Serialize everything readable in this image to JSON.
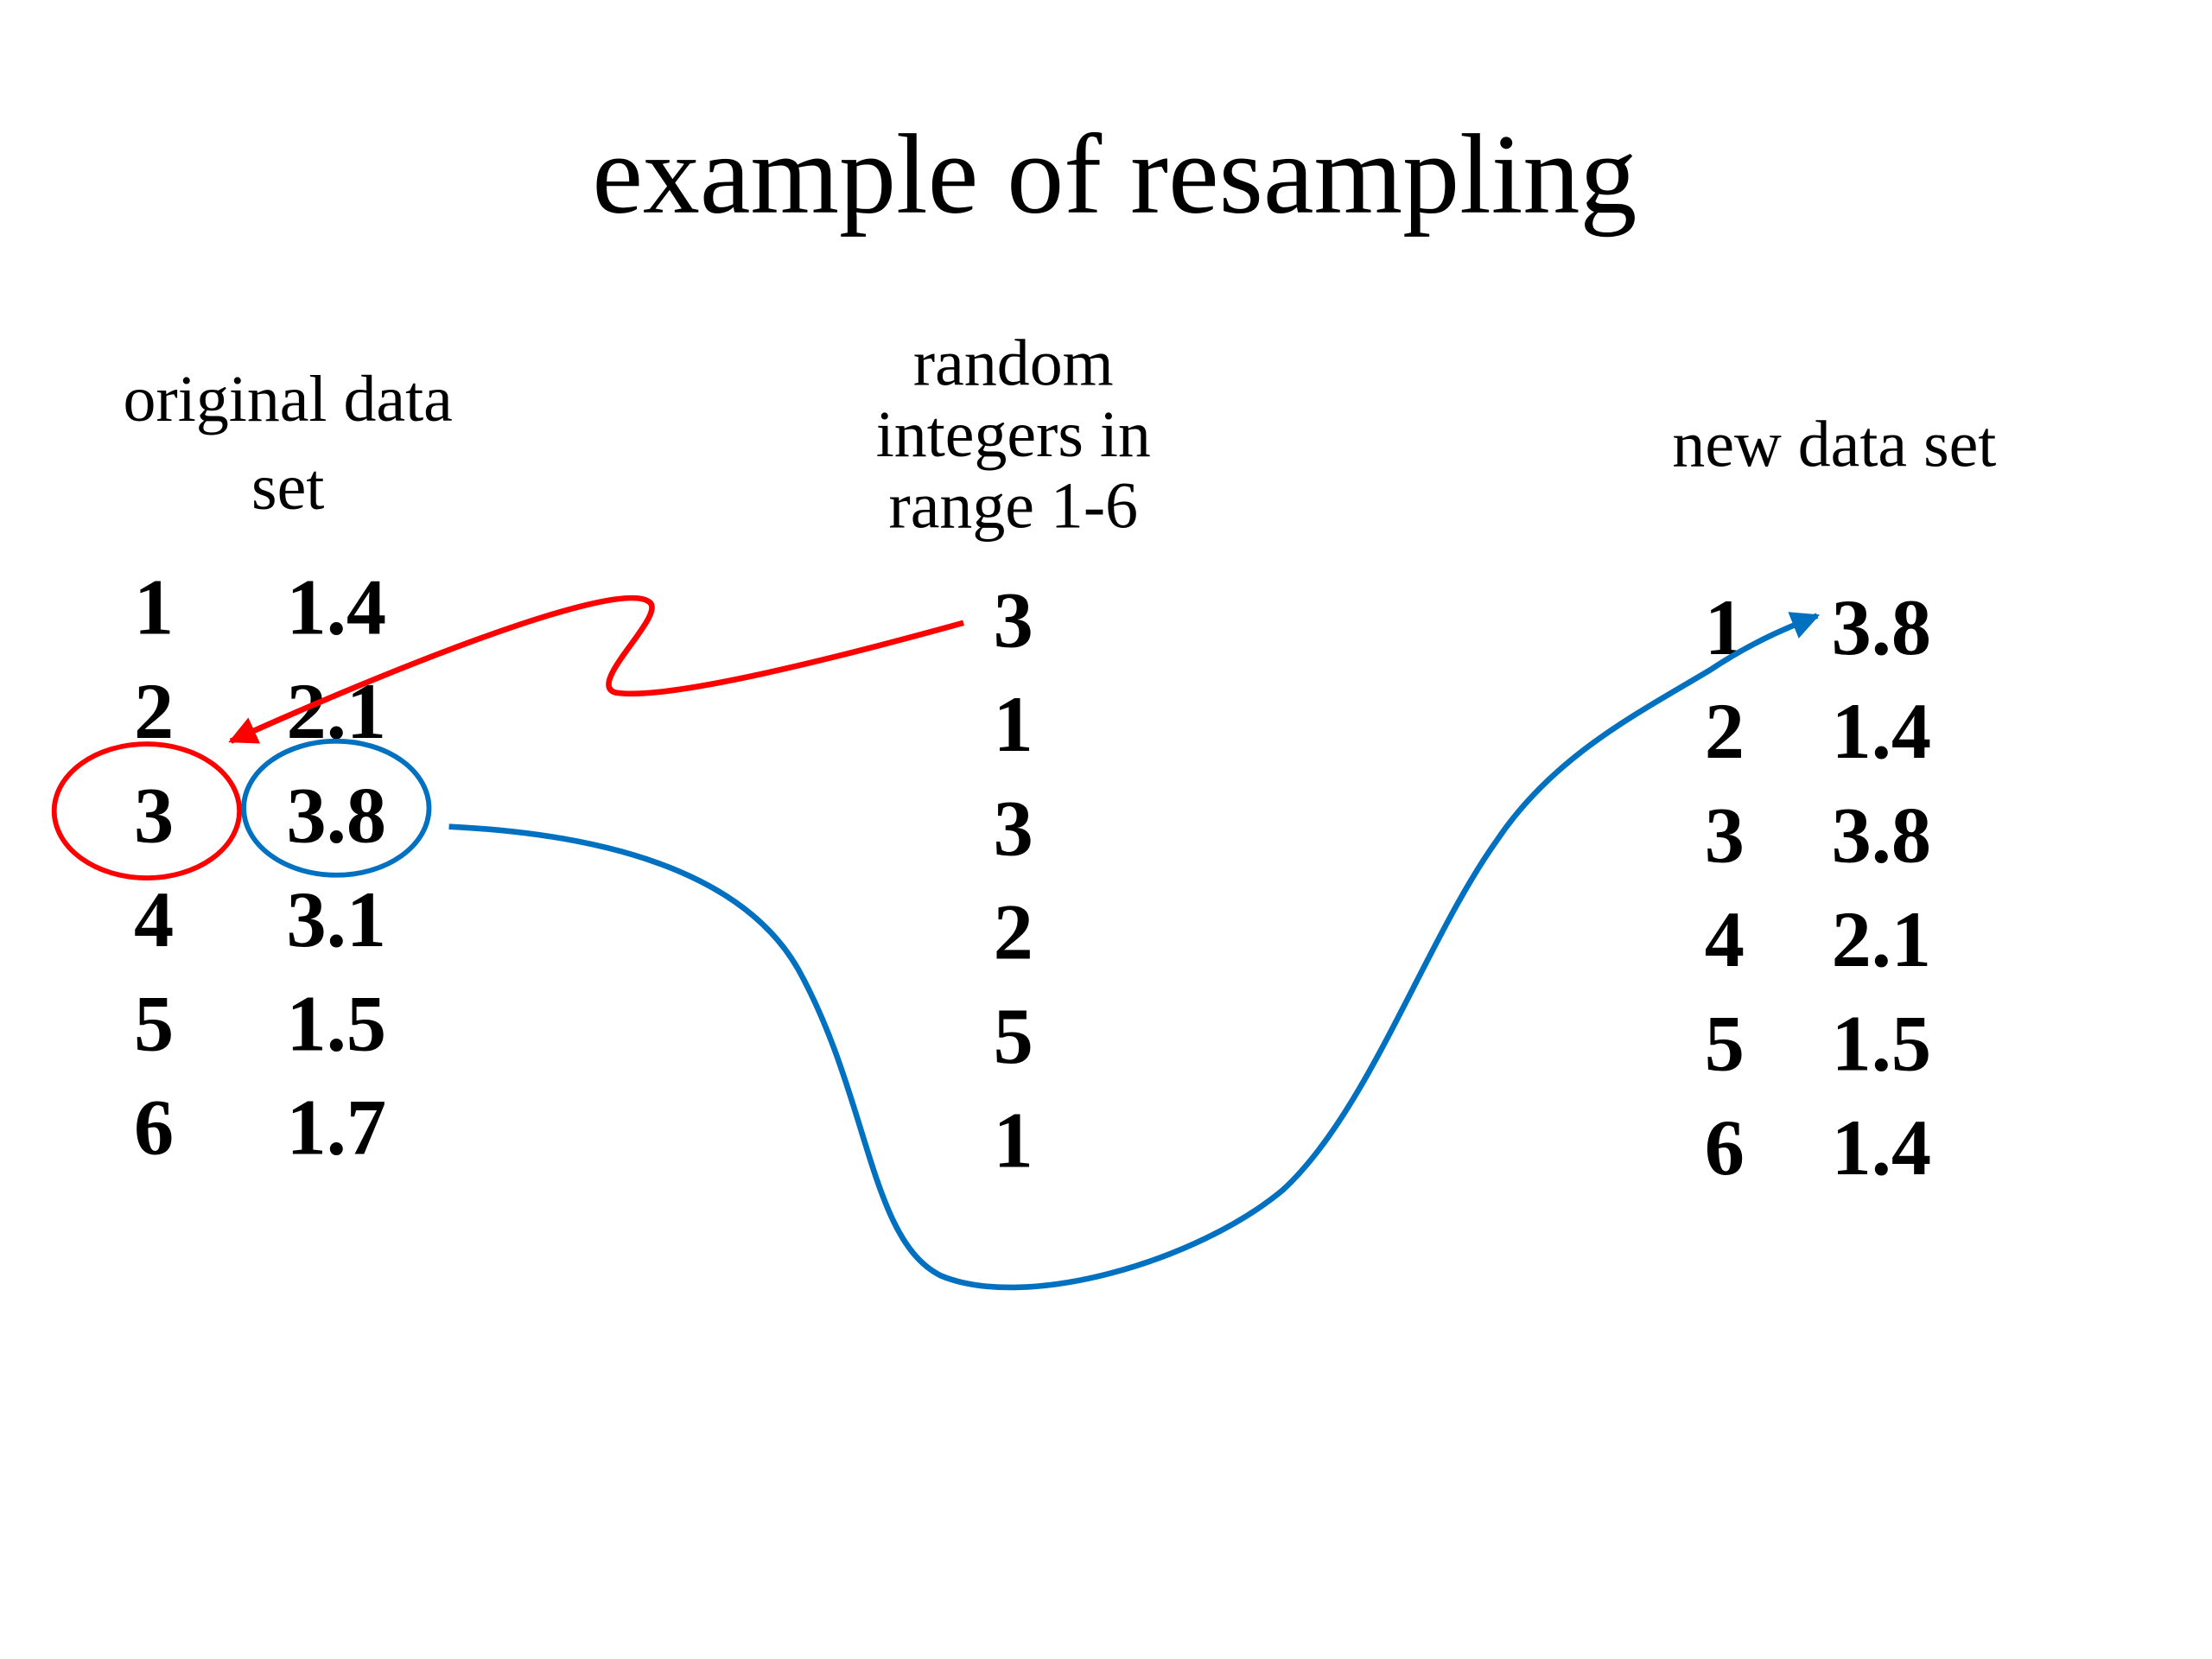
{
  "title": "example of resampling",
  "original": {
    "header": [
      "original data",
      "set"
    ],
    "rows": [
      [
        1,
        1.4
      ],
      [
        2,
        2.1
      ],
      [
        3,
        3.8
      ],
      [
        4,
        3.1
      ],
      [
        5,
        1.5
      ],
      [
        6,
        1.7
      ]
    ]
  },
  "random": {
    "header": [
      "random",
      "integers in",
      "range 1-6"
    ],
    "values": [
      3,
      1,
      3,
      2,
      5,
      1
    ]
  },
  "new": {
    "header": [
      "new data set"
    ],
    "rows": [
      [
        1,
        3.8
      ],
      [
        2,
        1.4
      ],
      [
        3,
        3.8
      ],
      [
        4,
        2.1
      ],
      [
        5,
        1.5
      ],
      [
        6,
        1.4
      ]
    ]
  }
}
